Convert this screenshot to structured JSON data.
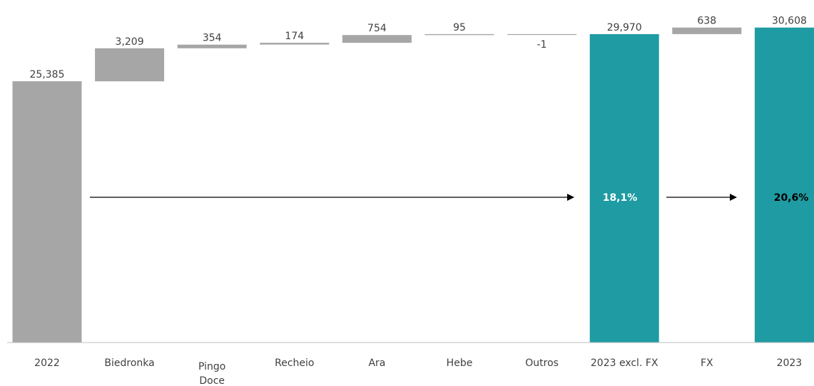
{
  "chart_data": {
    "type": "bar",
    "subtype": "waterfall",
    "categories": [
      "2022",
      "Biedronka",
      "Pingo Doce",
      "Recheio",
      "Ara",
      "Hebe",
      "Outros",
      "2023 excl. FX",
      "FX",
      "2023"
    ],
    "category_lines": [
      [
        "2022"
      ],
      [
        "Biedronka"
      ],
      [
        "Pingo",
        "Doce"
      ],
      [
        "Recheio"
      ],
      [
        "Ara"
      ],
      [
        "Hebe"
      ],
      [
        "Outros"
      ],
      [
        "2023 excl. FX"
      ],
      [
        "FX"
      ],
      [
        "2023"
      ]
    ],
    "values": [
      25385,
      3209,
      354,
      174,
      754,
      95,
      -1,
      29970,
      638,
      30608
    ],
    "labels": [
      "25,385",
      "3,209",
      "354",
      "174",
      "754",
      "95",
      "-1",
      "29,970",
      "638",
      "30,608"
    ],
    "kinds": [
      "total",
      "delta",
      "delta",
      "delta",
      "delta",
      "delta",
      "delta",
      "total",
      "delta",
      "total"
    ],
    "growth_labels": [
      "18,1%",
      "20,6%"
    ],
    "ylim": [
      0,
      31000
    ],
    "grid": false,
    "legend": "none",
    "colors": {
      "total_start": "#a6a6a6",
      "delta": "#a6a6a6",
      "total": "#1f9ba3",
      "axis": "#bfbfbf",
      "arrow": "#000000",
      "growth_1": "#ffffff",
      "growth_2": "#000000"
    }
  }
}
